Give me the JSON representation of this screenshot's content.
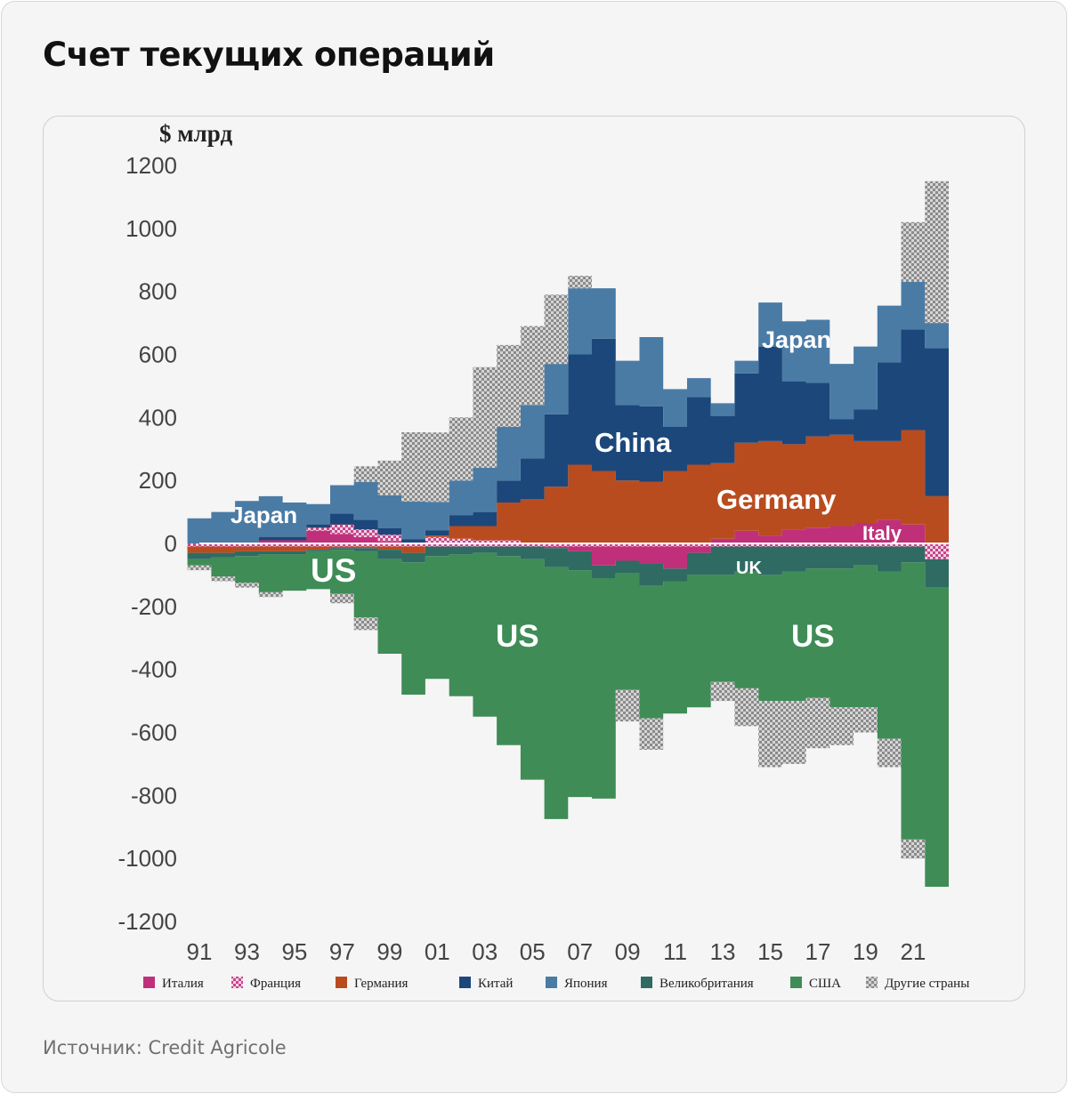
{
  "title": "Счет текущих операций",
  "source": "Источник: Credit Agricole",
  "colors": {
    "Италия": "#c0307a",
    "Франция": "#d77bb0",
    "Германия": "#b94c1f",
    "Китай": "#1c477b",
    "Япония": "#4a7ba5",
    "Великобритания": "#2f6b63",
    "США": "#3f8c57",
    "Другие страны": "#b8b8b8"
  },
  "chart_data": {
    "type": "area",
    "stacked": true,
    "title": "Счет текущих операций",
    "ylabel": "$ млрд",
    "ylim": [
      -1200,
      1200
    ],
    "xlim": [
      1991,
      2022.5
    ],
    "yticks": [
      1200,
      1000,
      800,
      600,
      400,
      200,
      0,
      -200,
      -400,
      -600,
      -800,
      -1000,
      -1200
    ],
    "xtick_labels": [
      "91",
      "93",
      "95",
      "97",
      "99",
      "01",
      "03",
      "05",
      "07",
      "09",
      "11",
      "13",
      "15",
      "17",
      "19",
      "21"
    ],
    "x": [
      1991,
      1992,
      1993,
      1994,
      1995,
      1996,
      1997,
      1998,
      1999,
      2000,
      2001,
      2002,
      2003,
      2004,
      2005,
      2006,
      2007,
      2008,
      2009,
      2010,
      2011,
      2012,
      2013,
      2014,
      2015,
      2016,
      2017,
      2018,
      2019,
      2020,
      2021,
      2022
    ],
    "positive_series": [
      {
        "name": "Италия",
        "values": [
          0,
          0,
          5,
          15,
          20,
          40,
          30,
          20,
          8,
          0,
          0,
          0,
          0,
          0,
          0,
          0,
          0,
          0,
          0,
          0,
          0,
          0,
          15,
          40,
          25,
          45,
          50,
          55,
          65,
          75,
          60,
          0
        ]
      },
      {
        "name": "Франция",
        "values": [
          0,
          5,
          10,
          15,
          15,
          25,
          35,
          35,
          40,
          18,
          20,
          15,
          10,
          10,
          0,
          0,
          0,
          0,
          0,
          0,
          0,
          0,
          0,
          0,
          0,
          0,
          0,
          0,
          0,
          0,
          0,
          0
        ]
      },
      {
        "name": "Германия",
        "values": [
          -20,
          -20,
          -15,
          -20,
          -25,
          -15,
          -5,
          -10,
          -20,
          -25,
          5,
          40,
          45,
          120,
          140,
          180,
          250,
          230,
          200,
          195,
          230,
          250,
          240,
          280,
          300,
          270,
          290,
          290,
          260,
          250,
          300,
          150
        ]
      },
      {
        "name": "Китай",
        "values": [
          10,
          5,
          0,
          10,
          10,
          10,
          35,
          30,
          20,
          20,
          17,
          35,
          45,
          70,
          130,
          230,
          350,
          420,
          240,
          240,
          140,
          215,
          150,
          220,
          300,
          200,
          170,
          50,
          100,
          250,
          320,
          470
        ]
      },
      {
        "name": "Япония",
        "values": [
          90,
          110,
          135,
          130,
          110,
          65,
          90,
          120,
          105,
          120,
          90,
          110,
          140,
          170,
          170,
          160,
          210,
          160,
          140,
          220,
          120,
          60,
          40,
          40,
          140,
          190,
          200,
          175,
          200,
          180,
          150,
          80
        ]
      },
      {
        "name": "Другие страны",
        "values": [
          0,
          0,
          0,
          0,
          0,
          0,
          0,
          50,
          110,
          220,
          220,
          200,
          320,
          260,
          250,
          220,
          40,
          0,
          0,
          0,
          0,
          0,
          0,
          0,
          0,
          0,
          0,
          0,
          0,
          0,
          190,
          450
        ]
      }
    ],
    "negative_series": [
      {
        "name": "Франция",
        "values": [
          -10,
          -10,
          -10,
          -10,
          -10,
          -10,
          -10,
          -10,
          -10,
          -10,
          -10,
          -10,
          -10,
          -10,
          -10,
          -10,
          -10,
          -10,
          -10,
          -10,
          -10,
          -10,
          -10,
          -10,
          -10,
          -10,
          -10,
          -10,
          -10,
          -10,
          -10,
          -50
        ]
      },
      {
        "name": "Италия",
        "values": [
          0,
          0,
          0,
          0,
          0,
          0,
          0,
          0,
          0,
          0,
          0,
          0,
          0,
          0,
          0,
          -5,
          -15,
          -60,
          -45,
          -55,
          -70,
          -20,
          0,
          0,
          0,
          0,
          0,
          0,
          0,
          0,
          0,
          0
        ]
      },
      {
        "name": "Германия",
        "values": [
          -20,
          -20,
          -15,
          -15,
          -15,
          -10,
          -5,
          -5,
          -10,
          -20,
          0,
          0,
          0,
          0,
          0,
          0,
          0,
          0,
          0,
          0,
          0,
          0,
          0,
          0,
          0,
          0,
          0,
          0,
          0,
          0,
          0,
          0
        ]
      },
      {
        "name": "Великобритания",
        "values": [
          -20,
          -15,
          -15,
          -10,
          -10,
          -5,
          -5,
          -10,
          -30,
          -30,
          -30,
          -25,
          -20,
          -30,
          -40,
          -60,
          -60,
          -40,
          -40,
          -70,
          -40,
          -70,
          -90,
          -80,
          -90,
          -80,
          -70,
          -70,
          -60,
          -80,
          -50,
          -90
        ]
      },
      {
        "name": "США",
        "values": [
          -20,
          -60,
          -85,
          -120,
          -115,
          -120,
          -140,
          -210,
          -300,
          -420,
          -390,
          -450,
          -520,
          -600,
          -700,
          -800,
          -720,
          -700,
          -370,
          -420,
          -420,
          -420,
          -340,
          -370,
          -400,
          -410,
          -410,
          -440,
          -450,
          -530,
          -880,
          -950
        ]
      },
      {
        "name": "Другие страны",
        "values": [
          -15,
          -15,
          -15,
          -15,
          0,
          0,
          -30,
          -40,
          0,
          0,
          0,
          0,
          0,
          0,
          0,
          0,
          0,
          0,
          -100,
          -100,
          0,
          0,
          -60,
          -120,
          -210,
          -200,
          -160,
          -120,
          -80,
          -90,
          -60,
          0
        ]
      }
    ],
    "legend": [
      "Италия",
      "Франция",
      "Германия",
      "Китай",
      "Япония",
      "Великобритания",
      "США",
      "Другие страны"
    ],
    "legend_position": "bottom",
    "annotations": [
      "Japan",
      "US",
      "China",
      "Germany",
      "Japan",
      "Italy",
      "UK",
      "US",
      "US"
    ]
  }
}
